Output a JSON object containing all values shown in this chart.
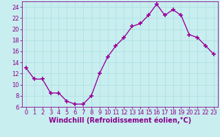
{
  "x": [
    0,
    1,
    2,
    3,
    4,
    5,
    6,
    7,
    8,
    9,
    10,
    11,
    12,
    13,
    14,
    15,
    16,
    17,
    18,
    19,
    20,
    21,
    22,
    23
  ],
  "y": [
    13,
    11,
    11,
    8.5,
    8.5,
    7,
    6.5,
    6.5,
    8,
    12,
    15,
    17,
    18.5,
    20.5,
    21,
    22.5,
    24.5,
    22.5,
    23.5,
    22.5,
    19,
    18.5,
    17,
    15.5
  ],
  "line_color": "#990099",
  "marker": "+",
  "marker_size": 4,
  "marker_lw": 1.2,
  "xlabel": "Windchill (Refroidissement éolien,°C)",
  "ylim": [
    6,
    25
  ],
  "xlim": [
    -0.5,
    23.5
  ],
  "yticks": [
    6,
    8,
    10,
    12,
    14,
    16,
    18,
    20,
    22,
    24
  ],
  "xticks": [
    0,
    1,
    2,
    3,
    4,
    5,
    6,
    7,
    8,
    9,
    10,
    11,
    12,
    13,
    14,
    15,
    16,
    17,
    18,
    19,
    20,
    21,
    22,
    23
  ],
  "bg_color": "#c8eef0",
  "grid_color": "#aadddd",
  "tick_color": "#880088",
  "label_color": "#880088",
  "xlabel_fontsize": 7.0,
  "tick_fontsize": 6.0,
  "line_width": 1.0
}
